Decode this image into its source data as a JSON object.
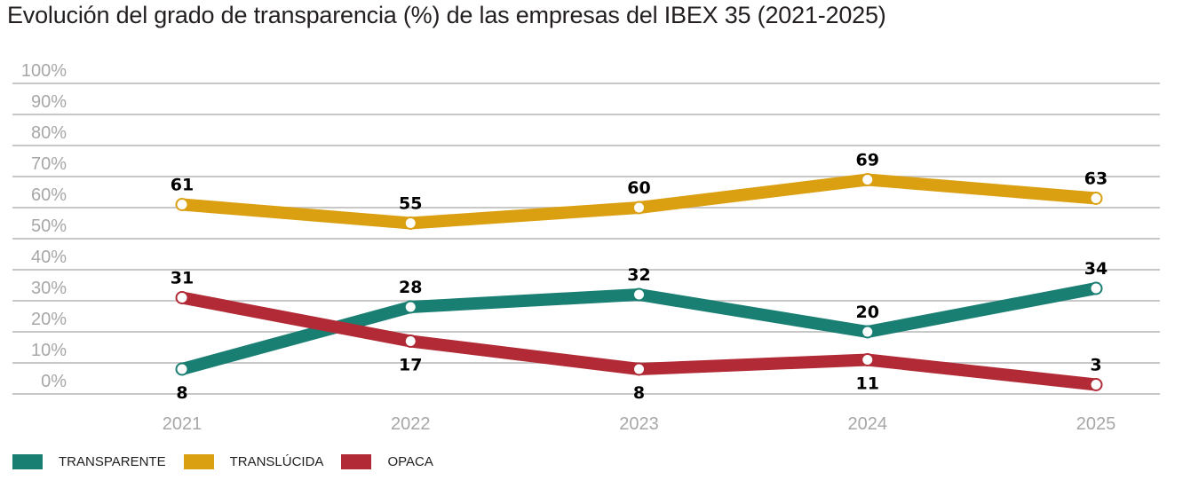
{
  "chart_data": {
    "type": "line",
    "title": "Evolución del grado de transparencia (%) de las empresas del IBEX 35 (2021-2025)",
    "xlabel": "",
    "ylabel": "",
    "x": [
      "2021",
      "2022",
      "2023",
      "2024",
      "2025"
    ],
    "ylim": [
      0,
      100
    ],
    "yticks": [
      0,
      10,
      20,
      30,
      40,
      50,
      60,
      70,
      80,
      90,
      100
    ],
    "ytick_labels": [
      "0%",
      "10%",
      "20%",
      "30%",
      "40%",
      "50%",
      "60%",
      "70%",
      "80%",
      "90%",
      "100%"
    ],
    "grid": true,
    "legend_position": "bottom-left",
    "series": [
      {
        "name": "TRANSPARENTE",
        "color": "#1a7f73",
        "values": [
          8,
          28,
          32,
          20,
          34
        ],
        "label_side": [
          "below",
          "above",
          "above",
          "above",
          "above"
        ]
      },
      {
        "name": "TRANSLÚCIDA",
        "color": "#dba012",
        "values": [
          61,
          55,
          60,
          69,
          63
        ],
        "label_side": [
          "above",
          "above",
          "above",
          "above",
          "above"
        ]
      },
      {
        "name": "OPACA",
        "color": "#b12a35",
        "values": [
          31,
          17,
          8,
          11,
          3
        ],
        "label_side": [
          "above",
          "below",
          "below",
          "below",
          "above"
        ]
      }
    ]
  }
}
